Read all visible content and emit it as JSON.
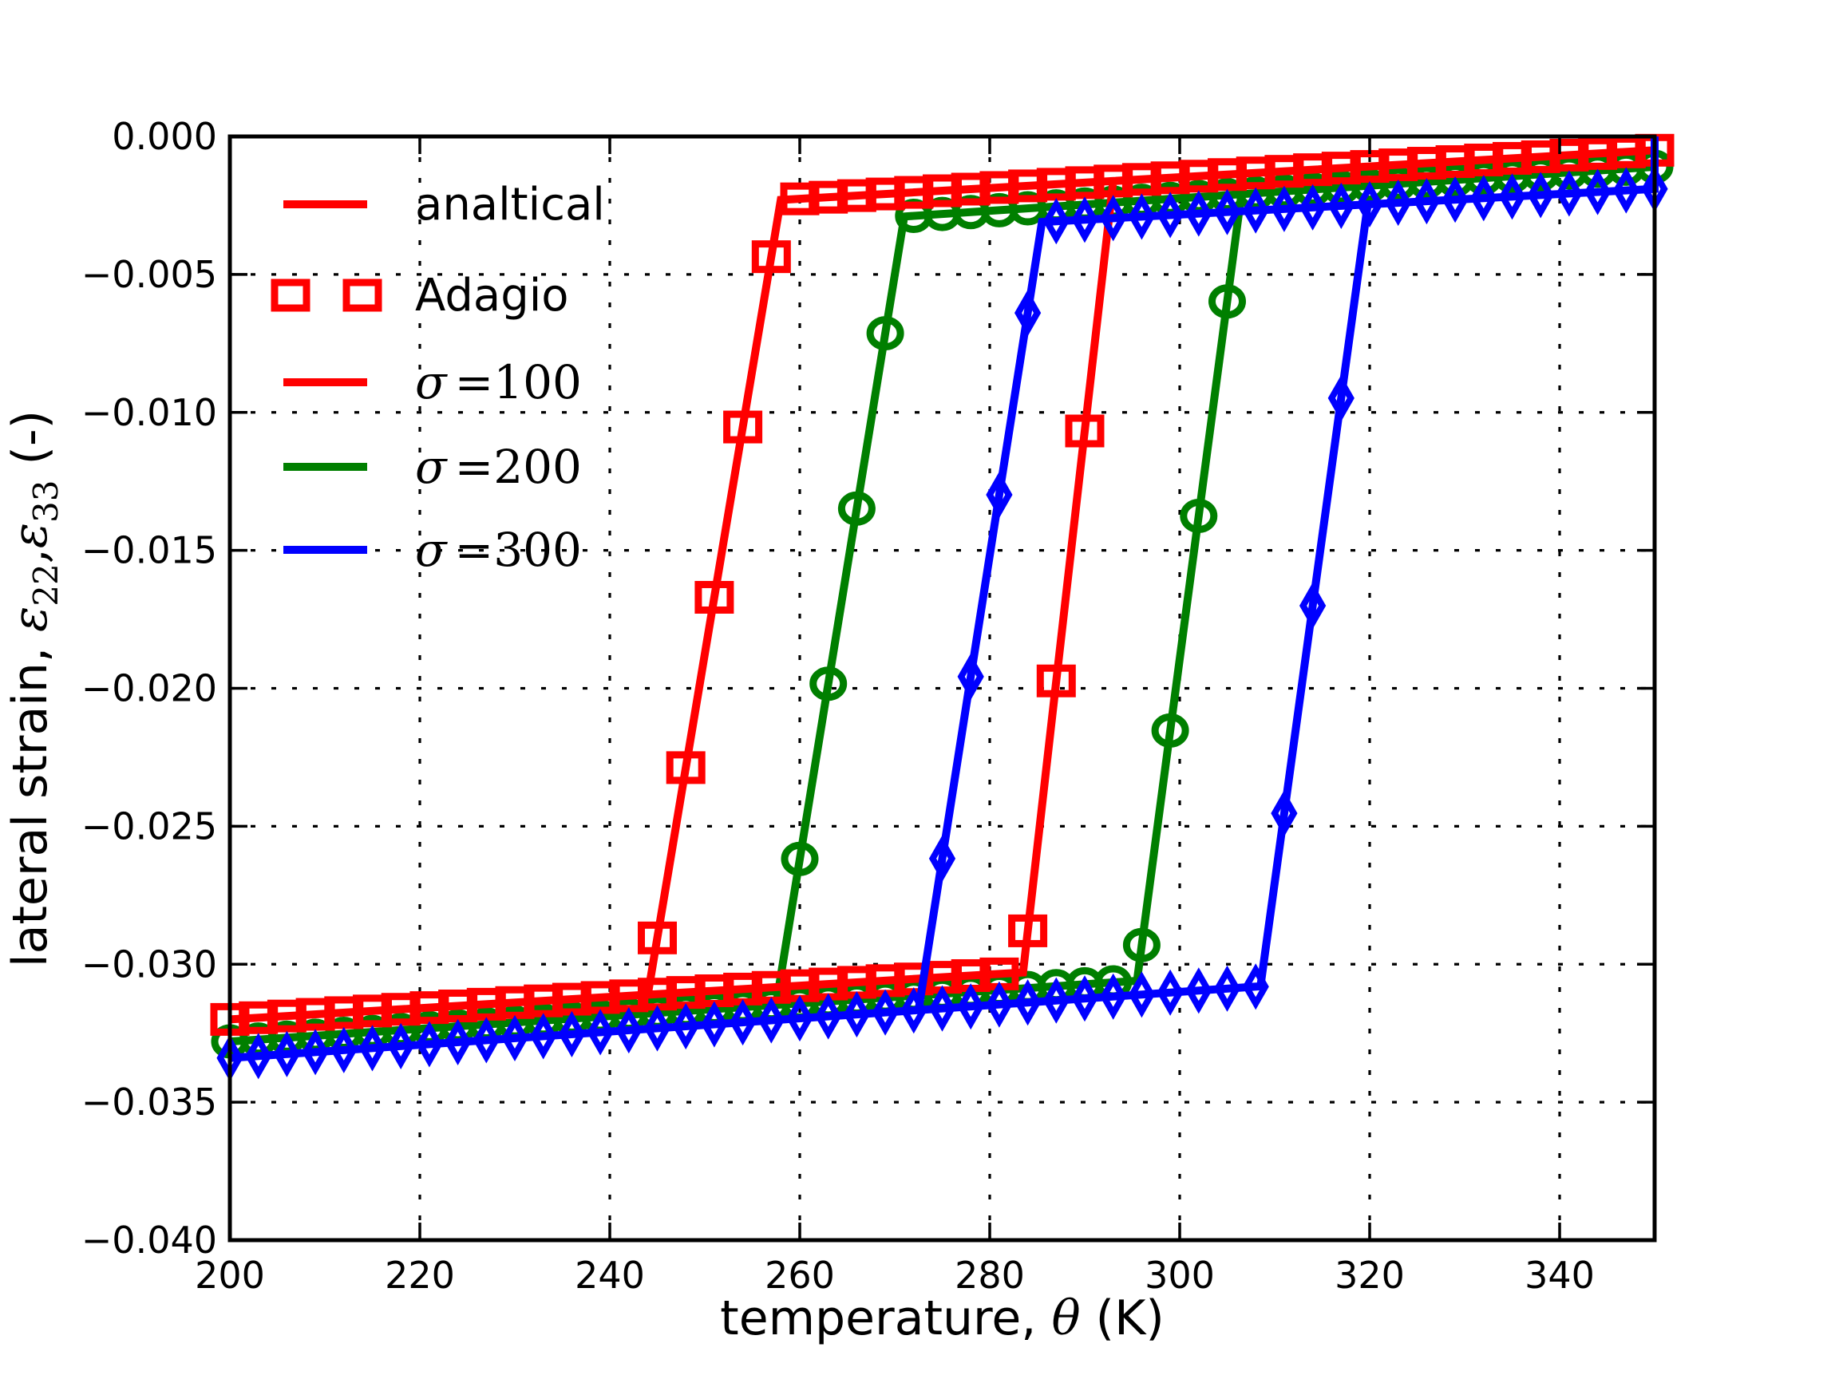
{
  "chart_data": {
    "type": "line",
    "title": "",
    "xlabel": {
      "prefix": "temperature, ",
      "symbol": "θ",
      "suffix": " (K)"
    },
    "ylabel": {
      "prefix": "lateral strain, ",
      "eps": "ε",
      "sub1": "22",
      "comma": ",",
      "sub2": "33",
      "suffix": " (-)"
    },
    "xlim": [
      200,
      350
    ],
    "ylim": [
      -0.04,
      0.0
    ],
    "xticks": {
      "values": [
        200,
        220,
        240,
        260,
        280,
        300,
        320,
        340
      ],
      "labels": [
        "200",
        "220",
        "240",
        "260",
        "280",
        "300",
        "320",
        "340"
      ]
    },
    "yticks": {
      "values": [
        0.0,
        -0.005,
        -0.01,
        -0.015,
        -0.02,
        -0.025,
        -0.03,
        -0.035,
        -0.04
      ],
      "labels": [
        "0.000",
        "−0.005",
        "−0.010",
        "−0.015",
        "−0.020",
        "−0.025",
        "−0.030",
        "−0.035",
        "−0.040"
      ]
    },
    "grid": true,
    "grid_style": "dotted",
    "legend": {
      "location": "upper left",
      "frame": false,
      "entries": [
        {
          "label": "analtical",
          "style": "line",
          "color": "#ff0000",
          "font": "sans"
        },
        {
          "label": "Adagio",
          "style": "squares",
          "color": "#ff0000",
          "font": "sans"
        },
        {
          "label_symbol": "σ",
          "label_rest": "=100",
          "style": "line",
          "color": "#ff0000",
          "font": "math"
        },
        {
          "label_symbol": "σ",
          "label_rest": "=200",
          "style": "line",
          "color": "#007f00",
          "font": "math"
        },
        {
          "label_symbol": "σ",
          "label_rest": "=300",
          "style": "line",
          "color": "#0000ff",
          "font": "math"
        }
      ]
    },
    "marker_interval_K": 3,
    "series": [
      {
        "name": "sigma-100",
        "sigma": 100,
        "color": "#ff0000",
        "marker": "square",
        "initial_point_at_350": 0.0,
        "upper_branch": {
          "T": [
            258.0,
            350.0
          ],
          "strain": [
            -0.0023,
            -0.0005
          ]
        },
        "lower_branch": {
          "T": [
            200.0,
            283.5
          ],
          "strain": [
            -0.032,
            -0.0303
          ]
        },
        "cooling_transition_T": [
          244.0,
          258.0
        ],
        "heating_transition_T": [
          283.5,
          293.0
        ]
      },
      {
        "name": "sigma-200",
        "sigma": 200,
        "color": "#007f00",
        "marker": "circle",
        "initial_point_at_350": 0.0,
        "upper_branch": {
          "T": [
            271.0,
            350.0
          ],
          "strain": [
            -0.0029,
            -0.0011
          ]
        },
        "lower_branch": {
          "T": [
            200.0,
            295.5
          ],
          "strain": [
            -0.0328,
            -0.0306
          ]
        },
        "cooling_transition_T": [
          257.5,
          271.0
        ],
        "heating_transition_T": [
          295.5,
          306.5
        ]
      },
      {
        "name": "sigma-300",
        "sigma": 300,
        "color": "#0000ff",
        "marker": "diamond",
        "initial_point_at_350": 0.0,
        "upper_branch": {
          "T": [
            285.5,
            350.0
          ],
          "strain": [
            -0.0031,
            -0.0019
          ]
        },
        "lower_branch": {
          "T": [
            200.0,
            308.5
          ],
          "strain": [
            -0.0334,
            -0.0308
          ]
        },
        "cooling_transition_T": [
          272.5,
          285.5
        ],
        "heating_transition_T": [
          308.5,
          319.8
        ]
      }
    ]
  },
  "colors": {
    "axis": "#000000",
    "grid": "#000000",
    "background": "#ffffff"
  }
}
